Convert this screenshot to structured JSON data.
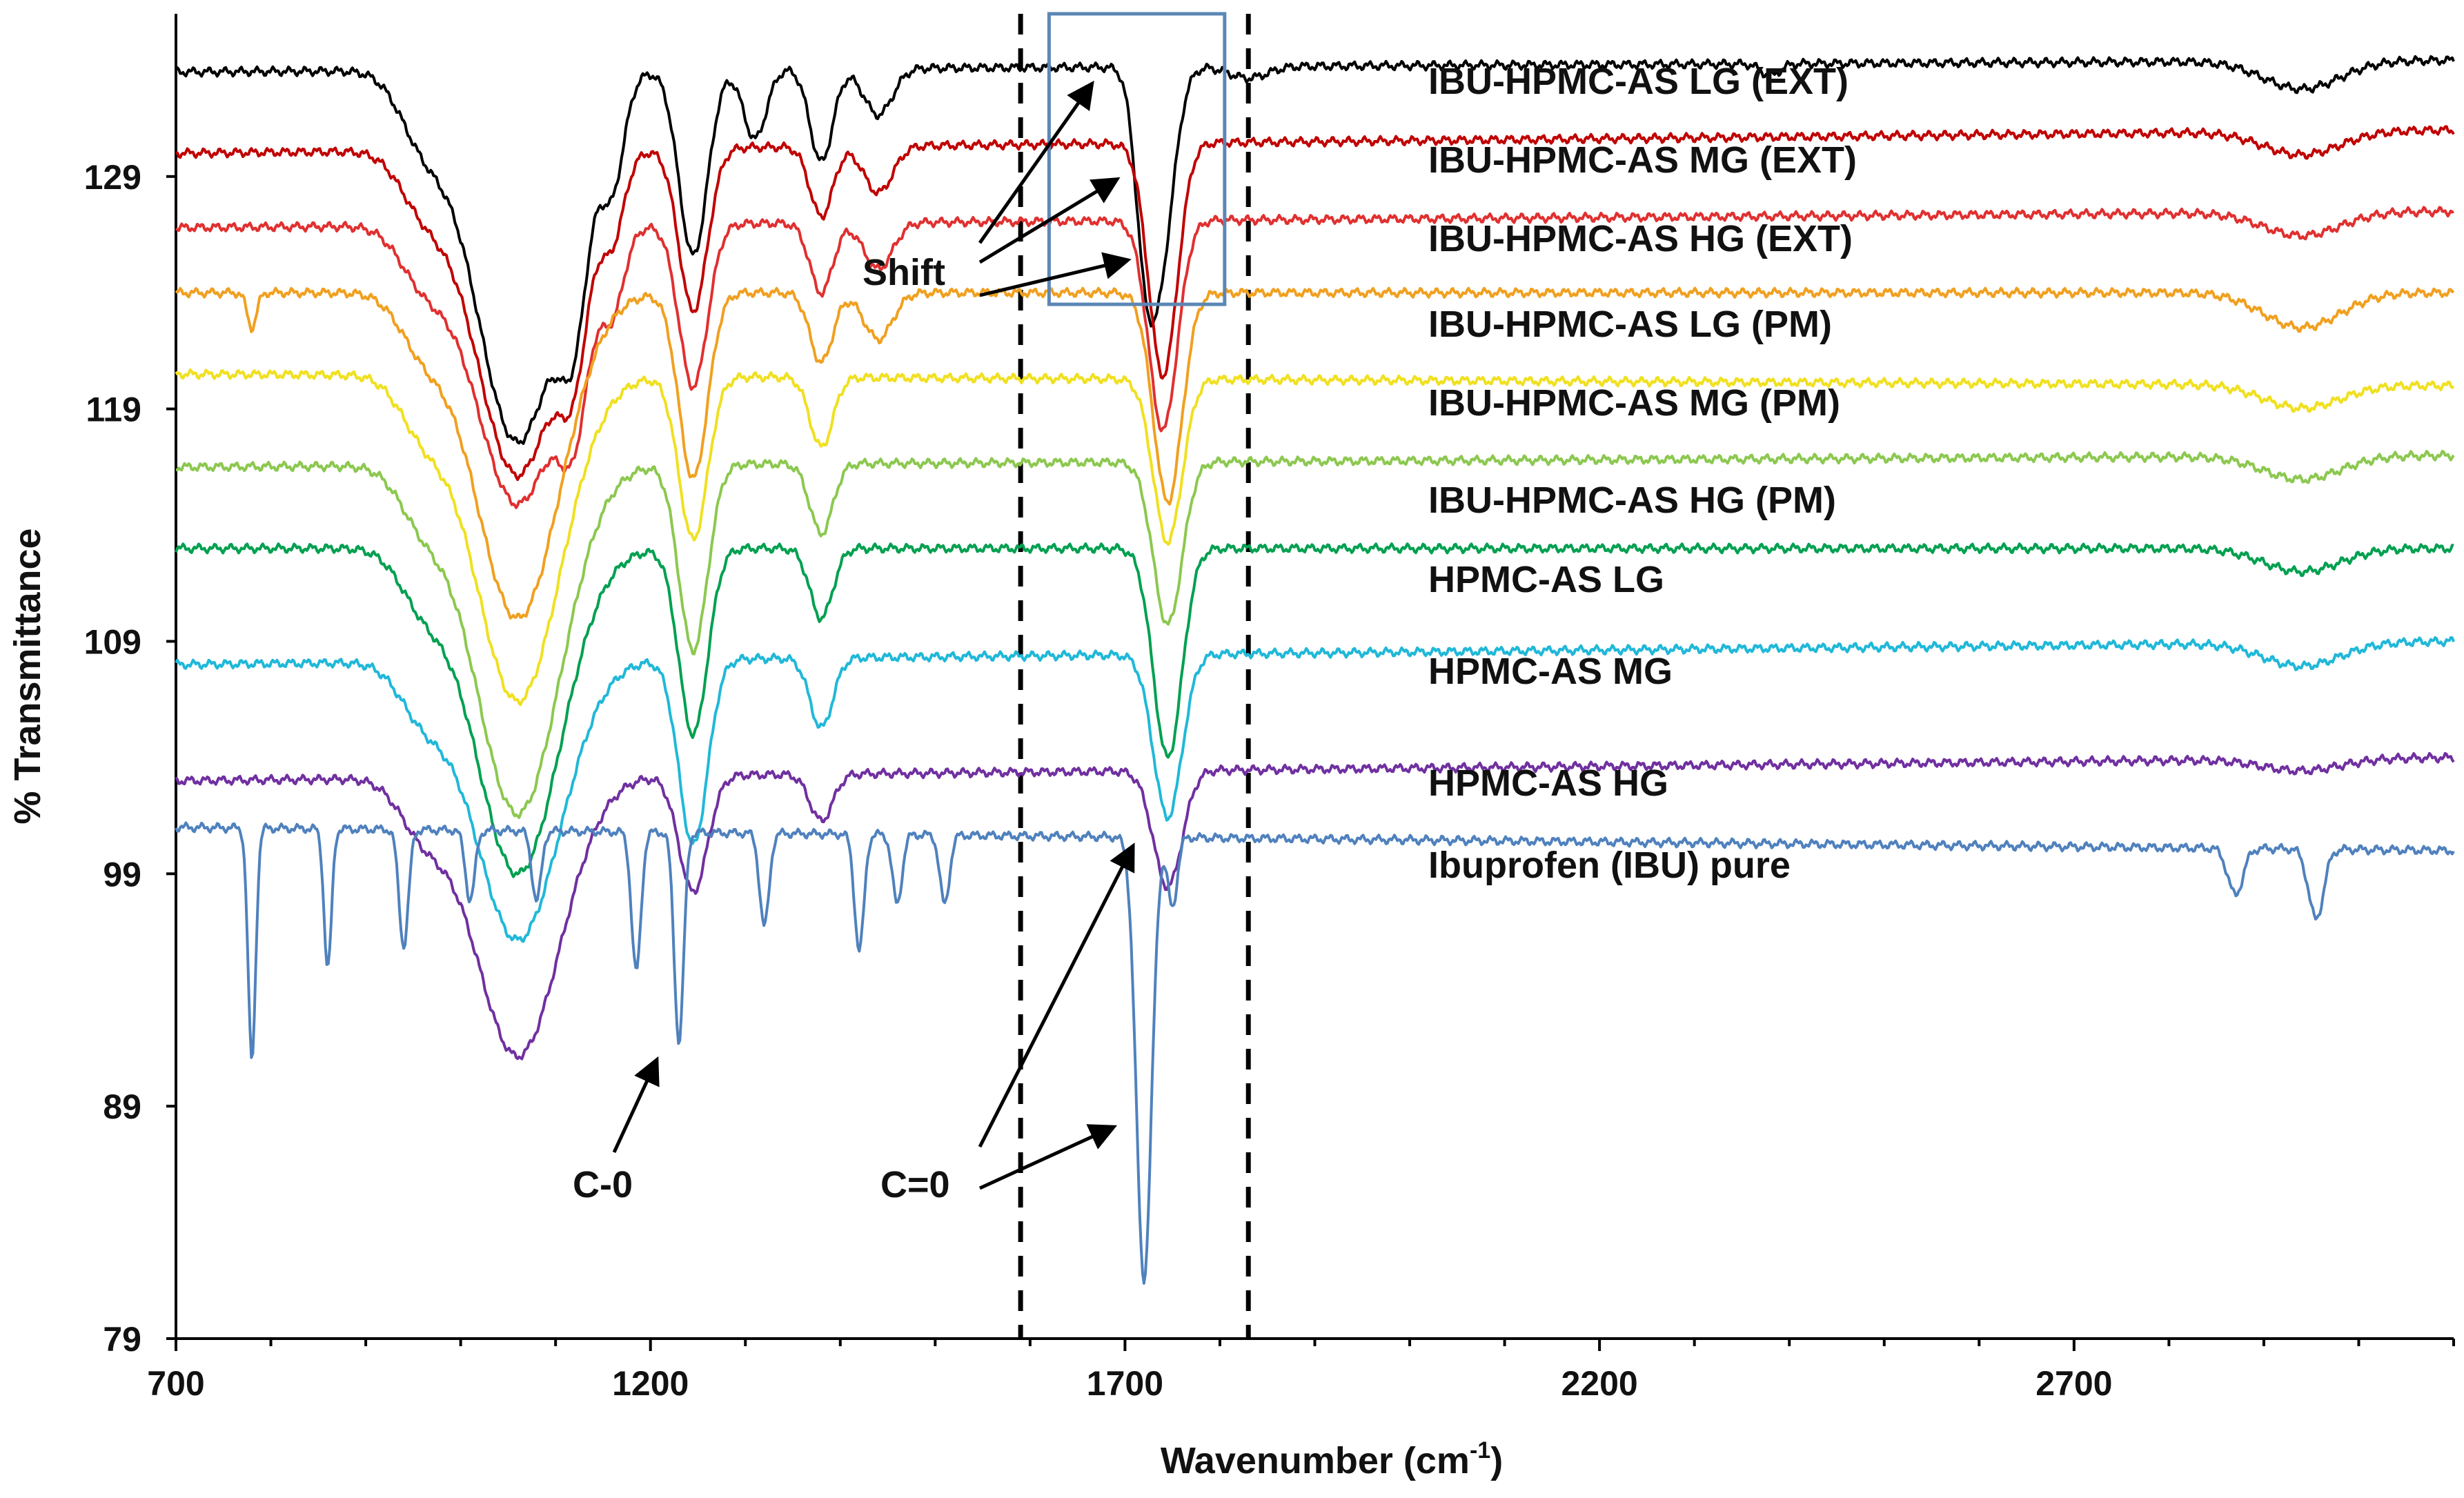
{
  "chart_data": {
    "type": "line",
    "title": "",
    "xlabel_main": "Wavenumber (cm",
    "xlabel_sup": "-1",
    "xlabel_tail": ")",
    "ylabel": "% Transmittance",
    "xlim": [
      700,
      3100
    ],
    "ylim": [
      79,
      136
    ],
    "xticks": [
      700,
      1200,
      1700,
      2200,
      2700
    ],
    "yticks": [
      79,
      89,
      99,
      109,
      119,
      129
    ],
    "grid": false,
    "legend_placement": "inline-right",
    "series": [
      {
        "name": "IBU-HPMC-AS LG (EXT)",
        "color": "#000000",
        "baseline": 133.5,
        "end": 134,
        "peaks": [
          [
            960,
            2.5,
            25
          ],
          [
            1060,
            16,
            45
          ],
          [
            1120,
            6,
            15
          ],
          [
            1160,
            4,
            12
          ],
          [
            1245,
            8,
            15
          ],
          [
            1310,
            3,
            12
          ],
          [
            1380,
            4,
            12
          ],
          [
            1440,
            2,
            15
          ],
          [
            1720,
            4,
            10
          ],
          [
            1735,
            9,
            15
          ],
          [
            1830,
            0.5,
            20
          ],
          [
            2380,
            0.5,
            10
          ],
          [
            2940,
            1.2,
            40
          ]
        ]
      },
      {
        "name": "IBU-HPMC-AS MG (EXT)",
        "color": "#c00000",
        "baseline": 130,
        "end": 131,
        "peaks": [
          [
            960,
            2,
            25
          ],
          [
            1060,
            14,
            45
          ],
          [
            1120,
            5,
            15
          ],
          [
            1160,
            3,
            12
          ],
          [
            1245,
            7,
            15
          ],
          [
            1380,
            3,
            12
          ],
          [
            1440,
            2,
            15
          ],
          [
            1740,
            10,
            15
          ],
          [
            2940,
            1,
            40
          ]
        ]
      },
      {
        "name": "IBU-HPMC-AS HG (EXT)",
        "color": "#e03030",
        "baseline": 126.8,
        "end": 127.5,
        "peaks": [
          [
            960,
            2,
            25
          ],
          [
            1060,
            12,
            45
          ],
          [
            1120,
            5,
            15
          ],
          [
            1160,
            3,
            12
          ],
          [
            1245,
            7,
            15
          ],
          [
            1380,
            3,
            12
          ],
          [
            1440,
            2,
            15
          ],
          [
            1740,
            9,
            15
          ],
          [
            2940,
            1,
            40
          ]
        ]
      },
      {
        "name": "IBU-HPMC-AS LG (PM)",
        "color": "#f0a020",
        "baseline": 124,
        "end": 124,
        "peaks": [
          [
            780,
            1.5,
            5
          ],
          [
            960,
            2,
            25
          ],
          [
            1060,
            14,
            45
          ],
          [
            1245,
            8,
            15
          ],
          [
            1380,
            3,
            12
          ],
          [
            1440,
            2,
            15
          ],
          [
            1745,
            9,
            15
          ],
          [
            2940,
            1.5,
            40
          ]
        ]
      },
      {
        "name": "IBU-HPMC-AS MG (PM)",
        "color": "#f0e020",
        "baseline": 120.5,
        "end": 120,
        "peaks": [
          [
            960,
            2,
            25
          ],
          [
            1060,
            14,
            45
          ],
          [
            1245,
            7,
            15
          ],
          [
            1380,
            3,
            12
          ],
          [
            1745,
            7,
            15
          ],
          [
            2940,
            1,
            40
          ]
        ]
      },
      {
        "name": "IBU-HPMC-AS HG (PM)",
        "color": "#8cc850",
        "baseline": 116.5,
        "end": 117,
        "peaks": [
          [
            960,
            2,
            25
          ],
          [
            1060,
            15,
            45
          ],
          [
            1245,
            8,
            15
          ],
          [
            1380,
            3,
            12
          ],
          [
            1745,
            7,
            15
          ],
          [
            2940,
            1,
            40
          ]
        ]
      },
      {
        "name": "HPMC-AS LG",
        "color": "#00a050",
        "baseline": 113,
        "end": 113,
        "peaks": [
          [
            960,
            2,
            25
          ],
          [
            1060,
            14,
            45
          ],
          [
            1245,
            8,
            15
          ],
          [
            1380,
            3,
            12
          ],
          [
            1745,
            9,
            15
          ],
          [
            2940,
            1,
            40
          ]
        ]
      },
      {
        "name": "HPMC-AS MG",
        "color": "#20b8d8",
        "baseline": 108,
        "end": 109,
        "peaks": [
          [
            960,
            2,
            25
          ],
          [
            1060,
            12,
            45
          ],
          [
            1245,
            8,
            15
          ],
          [
            1380,
            3,
            12
          ],
          [
            1745,
            7,
            15
          ],
          [
            2940,
            1,
            40
          ]
        ]
      },
      {
        "name": "HPMC-AS HG",
        "color": "#7030a0",
        "baseline": 103,
        "end": 104,
        "peaks": [
          [
            960,
            2,
            25
          ],
          [
            1060,
            12,
            45
          ],
          [
            1245,
            5,
            15
          ],
          [
            1380,
            2,
            12
          ],
          [
            1745,
            5,
            15
          ],
          [
            2940,
            0.5,
            40
          ]
        ]
      },
      {
        "name": "Ibuprofen (IBU) pure",
        "color": "#4f81bd",
        "baseline": 101,
        "end": 100,
        "peaks": [
          [
            780,
            10,
            4
          ],
          [
            860,
            6,
            4
          ],
          [
            940,
            5,
            5
          ],
          [
            1010,
            3,
            5
          ],
          [
            1080,
            3,
            5
          ],
          [
            1185,
            6,
            5
          ],
          [
            1230,
            9,
            5
          ],
          [
            1320,
            4,
            5
          ],
          [
            1420,
            5,
            5
          ],
          [
            1460,
            3,
            5
          ],
          [
            1510,
            3,
            5
          ],
          [
            1720,
            19,
            8
          ],
          [
            1750,
            3,
            5
          ],
          [
            2870,
            2,
            8
          ],
          [
            2955,
            3,
            8
          ]
        ]
      }
    ],
    "annotations": [
      {
        "label": "Shift"
      },
      {
        "label": "C-0"
      },
      {
        "label": "C=0"
      }
    ],
    "reference_lines": [
      1590,
      1830
    ],
    "highlight_box": {
      "x_range": [
        1620,
        1805
      ],
      "y_range": [
        123.5,
        136
      ]
    }
  }
}
